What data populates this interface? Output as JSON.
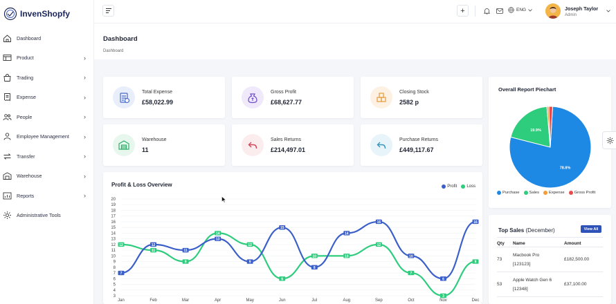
{
  "brand": {
    "name": "InvenShopfy"
  },
  "sidebar": {
    "items": [
      {
        "label": "Dashboard",
        "icon": "home-icon",
        "has_children": false
      },
      {
        "label": "Product",
        "icon": "table-icon",
        "has_children": true
      },
      {
        "label": "Trading",
        "icon": "bag-icon",
        "has_children": true
      },
      {
        "label": "Expense",
        "icon": "receipt-icon",
        "has_children": true
      },
      {
        "label": "People",
        "icon": "people-icon",
        "has_children": true
      },
      {
        "label": "Employee Management",
        "icon": "employee-icon",
        "has_children": true
      },
      {
        "label": "Transfer",
        "icon": "transfer-icon",
        "has_children": true
      },
      {
        "label": "Warehouse",
        "icon": "warehouse-icon",
        "has_children": true
      },
      {
        "label": "Reports",
        "icon": "reports-icon",
        "has_children": true
      },
      {
        "label": "Administrative Tools",
        "icon": "gear-icon",
        "has_children": false
      }
    ]
  },
  "header": {
    "add_label": "+",
    "language": "ENG",
    "user": {
      "name": "Joseph Taylor",
      "role": "Admin"
    }
  },
  "page": {
    "title": "Dashboard",
    "breadcrumb": "Dashboard"
  },
  "stats": [
    {
      "label": "Total Expense",
      "value": "£58,022.99",
      "icon": "expense-icon",
      "bg": "#e9eefb",
      "fg": "#4a67c9"
    },
    {
      "label": "Gross Profit",
      "value": "£68,627.77",
      "icon": "money-bag-icon",
      "bg": "#efe9fb",
      "fg": "#6c4bc4"
    },
    {
      "label": "Closing Stock",
      "value": "2582 p",
      "icon": "boxes-icon",
      "bg": "#fdf1e3",
      "fg": "#e59a3a"
    },
    {
      "label": "Warehouse",
      "value": "11",
      "icon": "warehouse-icon",
      "bg": "#e7f7ee",
      "fg": "#2fae6a"
    },
    {
      "label": "Sales Returns",
      "value": "£214,497.01",
      "icon": "return-icon",
      "bg": "#fbecee",
      "fg": "#d0485a"
    },
    {
      "label": "Purchase Returns",
      "value": "£449,117.67",
      "icon": "return-icon",
      "bg": "#e7f4fa",
      "fg": "#3a94b8"
    }
  ],
  "colors": {
    "profit": "#3b5fc9",
    "loss": "#2ecc7d",
    "purchase": "#1e88e5",
    "sales": "#2ecc7d",
    "expense": "#f39c35",
    "gross_profit": "#e84b4b",
    "accent": "#2f52b8"
  },
  "chart_data": [
    {
      "type": "line",
      "title": "Profit & Loss Overview",
      "categories": [
        "Jan",
        "Feb",
        "Mar",
        "Apr",
        "May",
        "Jun",
        "Jul",
        "Aug",
        "Sep",
        "Oct",
        "Nov",
        "Dec"
      ],
      "series": [
        {
          "name": "Profit",
          "values": [
            7,
            12,
            11,
            13,
            9,
            15,
            8,
            14,
            16,
            10,
            6,
            16
          ]
        },
        {
          "name": "Loss",
          "values": [
            12,
            11,
            9,
            14,
            12,
            6,
            10,
            10,
            12,
            7,
            3,
            9
          ]
        }
      ],
      "yticks": [
        20,
        19,
        18,
        17,
        16,
        15,
        14,
        13,
        12,
        11,
        10,
        9,
        8,
        7,
        6,
        5,
        4,
        3
      ],
      "ylim": [
        3,
        20
      ],
      "legend": "top-right",
      "grid": true
    },
    {
      "type": "pie",
      "title": "Overall Report Piechart",
      "categories": [
        "Purchase",
        "Sales",
        "Expense",
        "Gross Profit"
      ],
      "values": [
        78.8,
        19.9,
        0.8,
        1.5
      ],
      "labels": [
        "78.8%",
        "19.9%"
      ],
      "legend": "bottom"
    }
  ],
  "top_sales": {
    "title": "Top Sales",
    "period": "(December)",
    "view_all": "View All",
    "columns": [
      "Qty",
      "Name",
      "Amount"
    ],
    "rows": [
      {
        "qty": "73",
        "name": "Macbook Pro",
        "code": "[123123]",
        "amount": "£182,500.00"
      },
      {
        "qty": "53",
        "name": "Apple Watch Gen 6",
        "code": "[12348]",
        "amount": "£37,100.00"
      }
    ]
  }
}
